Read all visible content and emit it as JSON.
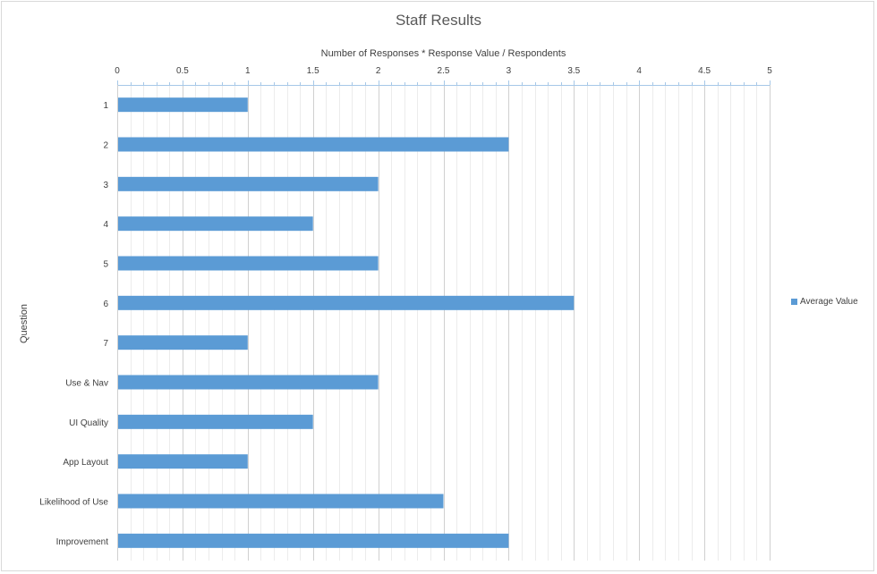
{
  "chart_data": {
    "type": "bar",
    "orientation": "horizontal",
    "title": "Staff Results",
    "xlabel": "Number of Responses * Response Value / Respondents",
    "ylabel": "Question",
    "xlim": [
      0,
      5
    ],
    "x_ticks": [
      "0",
      "0.5",
      "1",
      "1.5",
      "2",
      "2.5",
      "3",
      "3.5",
      "4",
      "4.5",
      "5"
    ],
    "x_axis_position": "top",
    "minor_grid": true,
    "legend_position": "right",
    "categories": [
      "1",
      "2",
      "3",
      "4",
      "5",
      "6",
      "7",
      "Use & Nav",
      "UI Quality",
      "App Layout",
      "Likelihood of Use",
      "Improvement"
    ],
    "series": [
      {
        "name": "Average Value",
        "color": "#5b9bd5",
        "values": [
          1,
          3,
          2,
          1.5,
          2,
          3.5,
          1,
          2,
          1.5,
          1,
          2.5,
          3
        ]
      }
    ]
  }
}
